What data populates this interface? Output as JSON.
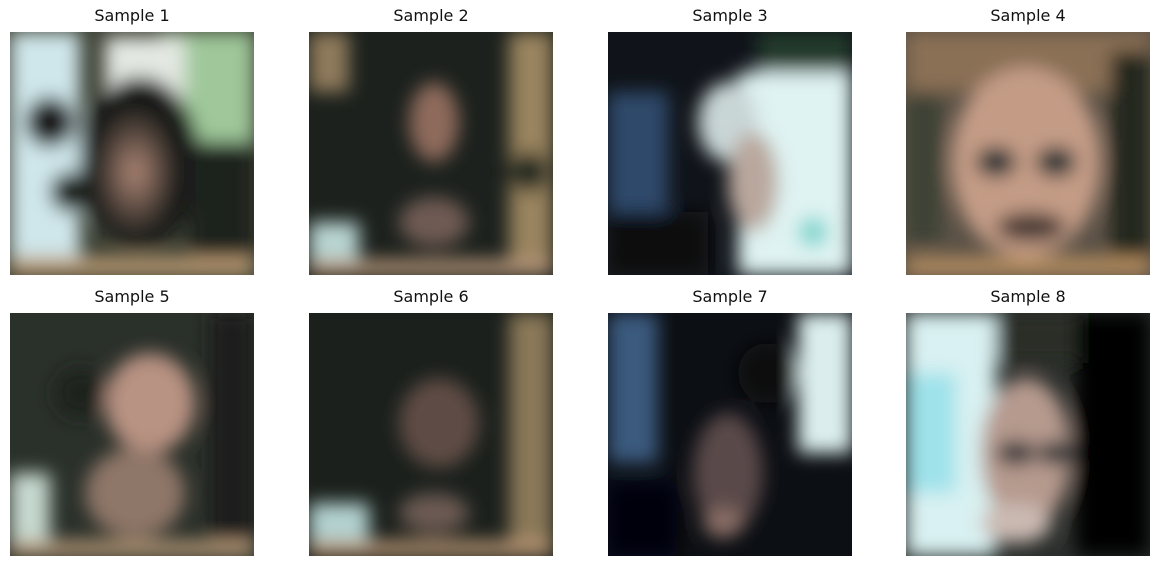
{
  "figure": {
    "samples": [
      {
        "title": "Sample 1",
        "palette": "light-left-green-right"
      },
      {
        "title": "Sample 2",
        "palette": "dark-tan"
      },
      {
        "title": "Sample 3",
        "palette": "blue-left-light-right"
      },
      {
        "title": "Sample 4",
        "palette": "tan-face"
      },
      {
        "title": "Sample 5",
        "palette": "tan-face-dark"
      },
      {
        "title": "Sample 6",
        "palette": "dark-tan"
      },
      {
        "title": "Sample 7",
        "palette": "blue-dark"
      },
      {
        "title": "Sample 8",
        "palette": "cyan-left-dark-right"
      }
    ]
  }
}
